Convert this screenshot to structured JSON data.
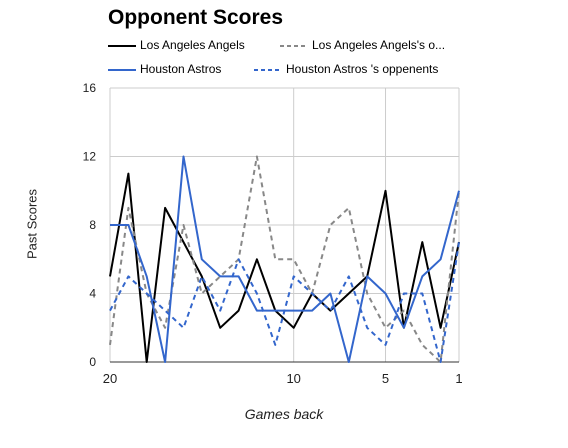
{
  "chart_data": {
    "type": "line",
    "title": "Opponent Scores",
    "xlabel": "Games back",
    "ylabel": "Past Scores",
    "x": [
      20,
      19,
      18,
      17,
      16,
      15,
      14,
      13,
      12,
      11,
      10,
      9,
      8,
      7,
      6,
      5,
      4,
      3,
      2,
      1
    ],
    "x_reversed": true,
    "xlim": [
      20,
      1
    ],
    "ylim": [
      0,
      16
    ],
    "x_ticks": [
      20,
      10,
      5,
      1
    ],
    "y_ticks": [
      0,
      4,
      8,
      12,
      16
    ],
    "grid": true,
    "legend_position": "top",
    "series": [
      {
        "name": "Los Angeles Angels",
        "color": "#000000",
        "dash": "solid",
        "values": [
          5,
          11,
          0,
          9,
          7,
          5,
          2,
          3,
          6,
          3,
          2,
          4,
          3,
          4,
          5,
          10,
          2,
          7,
          2,
          7
        ]
      },
      {
        "name": "Los Angeles Angels's o...",
        "color": "#888888",
        "dash": "dashed",
        "values": [
          1,
          9,
          4,
          2,
          8,
          4,
          5,
          6,
          12,
          6,
          6,
          4,
          8,
          9,
          4,
          2,
          3,
          1,
          0,
          10
        ]
      },
      {
        "name": "Houston Astros",
        "color": "#3366cc",
        "dash": "solid",
        "values": [
          8,
          8,
          5,
          0,
          12,
          6,
          5,
          5,
          3,
          3,
          3,
          3,
          4,
          0,
          5,
          4,
          2,
          5,
          6,
          10
        ]
      },
      {
        "name": "Houston Astros 's oppenents",
        "color": "#3366cc",
        "dash": "dashed",
        "values": [
          3,
          5,
          4,
          3,
          2,
          5,
          3,
          6,
          4,
          1,
          5,
          4,
          3,
          5,
          2,
          1,
          4,
          4,
          0,
          7
        ]
      }
    ]
  }
}
